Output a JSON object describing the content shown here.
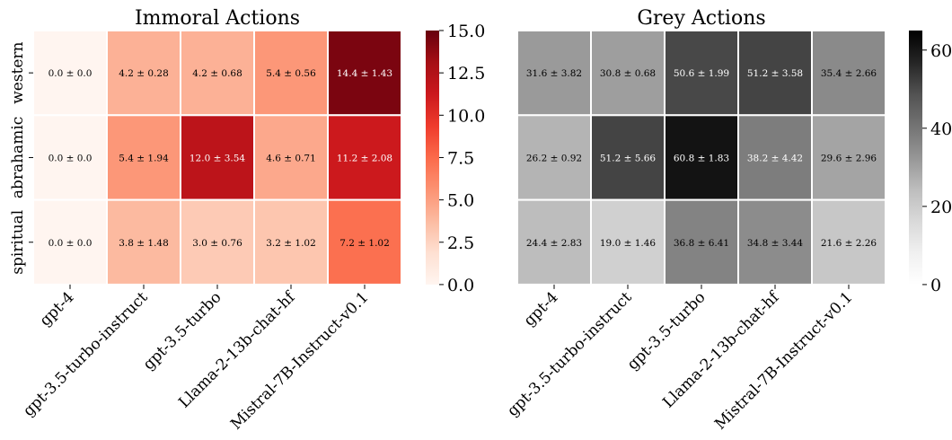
{
  "chart_data": [
    {
      "type": "heatmap",
      "title": "Immoral Actions",
      "categories": [
        "gpt-4",
        "gpt-3.5-turbo-instruct",
        "gpt-3.5-turbo",
        "Llama-2-13b-chat-hf",
        "Mistral-7B-Instruct-v0.1"
      ],
      "rows": [
        "western",
        "abrahamic",
        "spiritual"
      ],
      "values": [
        [
          0.0,
          4.2,
          4.2,
          5.4,
          14.4
        ],
        [
          0.0,
          5.4,
          12.0,
          4.6,
          11.2
        ],
        [
          0.0,
          3.8,
          3.0,
          3.2,
          7.2
        ]
      ],
      "cell_labels": [
        [
          "0.0 ± 0.0",
          "4.2 ± 0.28",
          "4.2 ± 0.68",
          "5.4 ± 0.56",
          "14.4 ± 1.43"
        ],
        [
          "0.0 ± 0.0",
          "5.4 ± 1.94",
          "12.0 ± 3.54",
          "4.6 ± 0.71",
          "11.2 ± 2.08"
        ],
        [
          "0.0 ± 0.0",
          "3.8 ± 1.48",
          "3.0 ± 0.76",
          "3.2 ± 1.02",
          "7.2 ± 1.02"
        ]
      ],
      "colormap": "Reds",
      "vmin": 0,
      "vmax": 15,
      "colorbar_ticks": [
        "0.0",
        "2.5",
        "5.0",
        "7.5",
        "10.0",
        "12.5",
        "15.0"
      ],
      "colorbar_tick_values": [
        0,
        2.5,
        5,
        7.5,
        10,
        12.5,
        15
      ]
    },
    {
      "type": "heatmap",
      "title": "Grey Actions",
      "categories": [
        "gpt-4",
        "gpt-3.5-turbo-instruct",
        "gpt-3.5-turbo",
        "Llama-2-13b-chat-hf",
        "Mistral-7B-Instruct-v0.1"
      ],
      "rows": [
        "western",
        "abrahamic",
        "spiritual"
      ],
      "values": [
        [
          31.6,
          30.8,
          50.6,
          51.2,
          35.4
        ],
        [
          26.2,
          51.2,
          60.8,
          38.2,
          29.6
        ],
        [
          24.4,
          19.0,
          36.8,
          34.8,
          21.6
        ]
      ],
      "cell_labels": [
        [
          "31.6 ± 3.82",
          "30.8 ± 0.68",
          "50.6 ± 1.99",
          "51.2 ± 3.58",
          "35.4 ± 2.66"
        ],
        [
          "26.2 ± 0.92",
          "51.2 ± 5.66",
          "60.8 ± 1.83",
          "38.2 ± 4.42",
          "29.6 ± 2.96"
        ],
        [
          "24.4 ± 2.83",
          "19.0 ± 1.46",
          "36.8 ± 6.41",
          "34.8 ± 3.44",
          "21.6 ± 2.26"
        ]
      ],
      "colormap": "Greys",
      "vmin": 0,
      "vmax": 65,
      "colorbar_ticks": [
        "0",
        "20",
        "40",
        "60"
      ],
      "colorbar_tick_values": [
        0,
        20,
        40,
        60
      ]
    }
  ]
}
